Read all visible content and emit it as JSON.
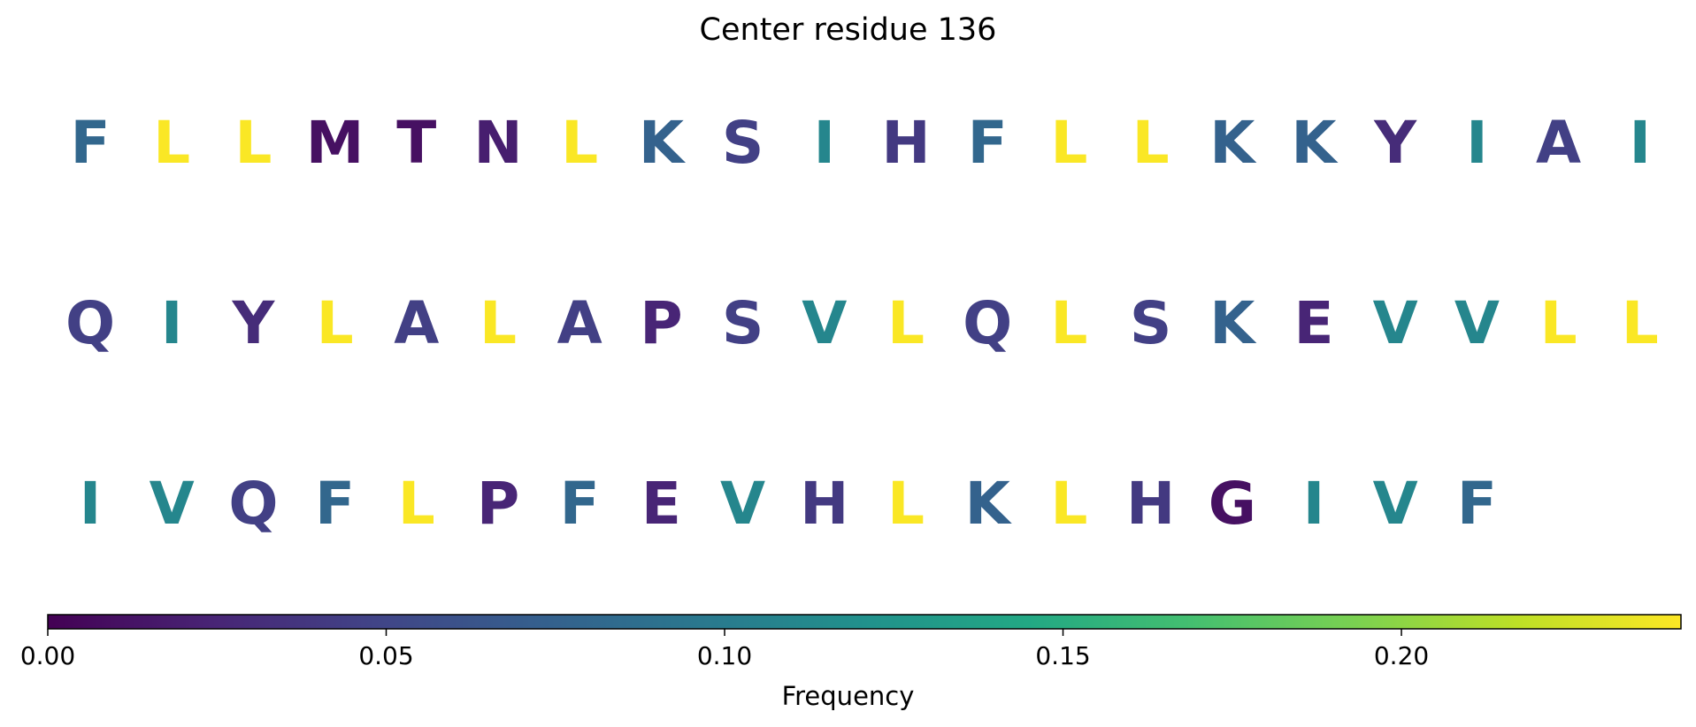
{
  "title": "Center residue 136",
  "chart_data": {
    "type": "heatmap",
    "title": "Center residue 136",
    "colormap": "viridis",
    "colorbar": {
      "label": "Frequency",
      "range": [
        0.0,
        0.2413
      ],
      "ticks": [
        0.0,
        0.05,
        0.1,
        0.15,
        0.2
      ],
      "tick_labels": [
        "0.00",
        "0.05",
        "0.10",
        "0.15",
        "0.20"
      ]
    },
    "rows": [
      {
        "residues": [
          "F",
          "L",
          "L",
          "M",
          "T",
          "N",
          "L",
          "K",
          "S",
          "I",
          "H",
          "F",
          "L",
          "L",
          "K",
          "K",
          "Y",
          "I",
          "A",
          "I"
        ],
        "frequencies": [
          0.08,
          0.24,
          0.24,
          0.01,
          0.01,
          0.02,
          0.24,
          0.075,
          0.045,
          0.11,
          0.04,
          0.08,
          0.24,
          0.24,
          0.075,
          0.075,
          0.03,
          0.11,
          0.045,
          0.11
        ]
      },
      {
        "residues": [
          "Q",
          "I",
          "Y",
          "L",
          "A",
          "L",
          "A",
          "P",
          "S",
          "V",
          "L",
          "Q",
          "L",
          "S",
          "K",
          "E",
          "V",
          "V",
          "L",
          "L"
        ],
        "frequencies": [
          0.045,
          0.11,
          0.03,
          0.24,
          0.045,
          0.24,
          0.045,
          0.025,
          0.045,
          0.11,
          0.24,
          0.045,
          0.24,
          0.045,
          0.075,
          0.025,
          0.11,
          0.11,
          0.24,
          0.24
        ]
      },
      {
        "residues": [
          "I",
          "V",
          "Q",
          "F",
          "L",
          "P",
          "F",
          "E",
          "V",
          "H",
          "L",
          "K",
          "L",
          "H",
          "G",
          "I",
          "V",
          "F"
        ],
        "frequencies": [
          0.11,
          0.11,
          0.045,
          0.08,
          0.24,
          0.025,
          0.08,
          0.025,
          0.11,
          0.04,
          0.24,
          0.075,
          0.24,
          0.04,
          0.01,
          0.11,
          0.11,
          0.08
        ]
      }
    ]
  }
}
